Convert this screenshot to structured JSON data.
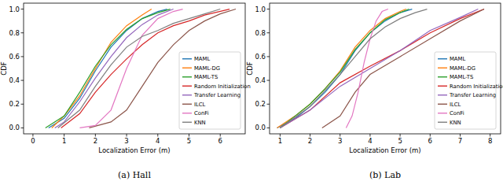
{
  "chart_data": [
    {
      "type": "line",
      "title": "(a) Hall",
      "x_label": "Localization Error (m)",
      "y_label": "CDF",
      "xlim": [
        -0.3,
        6.8
      ],
      "ylim": [
        -0.05,
        1.05
      ],
      "xticks": [
        0,
        1,
        2,
        3,
        4,
        5,
        6
      ],
      "yticks": [
        {
          "value": 0,
          "label": "0.0"
        },
        {
          "value": 0.2,
          "label": "0.2"
        },
        {
          "value": 0.4,
          "label": "0.4"
        },
        {
          "value": 0.6,
          "label": "0.6"
        },
        {
          "value": 0.8,
          "label": "0.8"
        },
        {
          "value": 1,
          "label": "1.0"
        }
      ],
      "legend": "lower right",
      "grid": false,
      "series": [
        {
          "name": "MAML",
          "color": "#1f77b4",
          "x": [
            0.5,
            1,
            1.5,
            2,
            2.5,
            3,
            3.5,
            4,
            4.3
          ],
          "values": [
            0,
            0.08,
            0.25,
            0.48,
            0.68,
            0.82,
            0.92,
            0.98,
            1
          ]
        },
        {
          "name": "MAML-DG",
          "color": "#ff7f0e",
          "x": [
            0.6,
            1,
            1.5,
            2,
            2.5,
            3,
            3.5,
            3.8
          ],
          "values": [
            0,
            0.1,
            0.27,
            0.5,
            0.72,
            0.86,
            0.95,
            1
          ]
        },
        {
          "name": "MAML-TS",
          "color": "#2ca02c",
          "x": [
            0.4,
            1,
            1.5,
            2,
            2.5,
            3,
            3.5,
            4,
            4.4
          ],
          "values": [
            0,
            0.1,
            0.3,
            0.52,
            0.7,
            0.83,
            0.92,
            0.97,
            1
          ]
        },
        {
          "name": "Random Initialization",
          "color": "#d62728",
          "x": [
            0.9,
            1.5,
            2,
            2.5,
            3,
            3.5,
            4,
            4.5,
            5,
            5.5,
            6.3
          ],
          "values": [
            0,
            0.12,
            0.3,
            0.45,
            0.58,
            0.7,
            0.8,
            0.86,
            0.9,
            0.95,
            1
          ]
        },
        {
          "name": "Transfer Learning",
          "color": "#9467bd",
          "x": [
            0.7,
            1,
            1.5,
            2,
            2.5,
            3,
            3.5,
            4,
            4.5
          ],
          "values": [
            0,
            0.05,
            0.22,
            0.42,
            0.6,
            0.76,
            0.87,
            0.95,
            1
          ]
        },
        {
          "name": "ILCL",
          "color": "#8c564b",
          "x": [
            1.8,
            2.5,
            3,
            3.5,
            4,
            4.5,
            5,
            5.5,
            6,
            6.5
          ],
          "values": [
            0,
            0.05,
            0.15,
            0.35,
            0.55,
            0.7,
            0.82,
            0.9,
            0.96,
            1
          ]
        },
        {
          "name": "ConFi",
          "color": "#e377c2",
          "x": [
            1.5,
            2,
            2.5,
            3,
            3.5,
            4,
            4.5,
            4.8
          ],
          "values": [
            0,
            0.02,
            0.15,
            0.5,
            0.78,
            0.92,
            0.98,
            1
          ]
        },
        {
          "name": "KNN",
          "color": "#7f7f7f",
          "x": [
            0.8,
            1.5,
            2,
            2.5,
            3,
            3.5,
            4,
            4.5,
            5,
            5.5,
            6
          ],
          "values": [
            0,
            0.15,
            0.35,
            0.53,
            0.68,
            0.77,
            0.82,
            0.88,
            0.92,
            0.96,
            1
          ]
        }
      ]
    },
    {
      "type": "line",
      "title": "(b) Lab",
      "x_label": "Localization Error (m)",
      "y_label": "CDF",
      "xlim": [
        0.65,
        8.35
      ],
      "ylim": [
        -0.05,
        1.05
      ],
      "xticks": [
        1,
        2,
        3,
        4,
        5,
        6,
        7,
        8
      ],
      "yticks": [
        {
          "value": 0,
          "label": "0.0"
        },
        {
          "value": 0.2,
          "label": "0.2"
        },
        {
          "value": 0.4,
          "label": "0.4"
        },
        {
          "value": 0.6,
          "label": "0.6"
        },
        {
          "value": 0.8,
          "label": "0.8"
        },
        {
          "value": 1,
          "label": "1.0"
        }
      ],
      "legend": "lower right",
      "grid": false,
      "series": [
        {
          "name": "MAML",
          "color": "#1f77b4",
          "x": [
            0.9,
            1.5,
            2,
            2.5,
            3,
            3.5,
            4,
            4.5,
            5,
            5.4
          ],
          "values": [
            0,
            0.08,
            0.18,
            0.3,
            0.45,
            0.65,
            0.8,
            0.9,
            0.97,
            1
          ]
        },
        {
          "name": "MAML-DG",
          "color": "#ff7f0e",
          "x": [
            0.9,
            1.5,
            2,
            2.5,
            3,
            3.5,
            4,
            4.5,
            5,
            5.2
          ],
          "values": [
            0,
            0.1,
            0.2,
            0.33,
            0.48,
            0.68,
            0.82,
            0.92,
            0.98,
            1
          ]
        },
        {
          "name": "MAML-TS",
          "color": "#2ca02c",
          "x": [
            1,
            1.5,
            2,
            2.5,
            3,
            3.5,
            4,
            4.5,
            5,
            5.3
          ],
          "values": [
            0,
            0.1,
            0.2,
            0.33,
            0.47,
            0.66,
            0.8,
            0.91,
            0.97,
            1
          ]
        },
        {
          "name": "Random Initialization",
          "color": "#d62728",
          "x": [
            1,
            2,
            3,
            4,
            5,
            6,
            7,
            7.8
          ],
          "values": [
            0,
            0.15,
            0.38,
            0.52,
            0.65,
            0.8,
            0.92,
            1
          ]
        },
        {
          "name": "Transfer Learning",
          "color": "#9467bd",
          "x": [
            1,
            2,
            3,
            4,
            5,
            6,
            7,
            7.6
          ],
          "values": [
            0,
            0.15,
            0.35,
            0.5,
            0.65,
            0.82,
            0.93,
            1
          ]
        },
        {
          "name": "ILCL",
          "color": "#8c564b",
          "x": [
            2.4,
            3,
            3.5,
            4,
            5,
            6,
            7,
            7.8
          ],
          "values": [
            0,
            0.1,
            0.3,
            0.45,
            0.6,
            0.75,
            0.9,
            1
          ]
        },
        {
          "name": "ConFi",
          "color": "#e377c2",
          "x": [
            3.2,
            3.4,
            3.6,
            3.8,
            4,
            4.2,
            4.4,
            4.6
          ],
          "values": [
            0,
            0.1,
            0.3,
            0.55,
            0.75,
            0.9,
            0.98,
            1
          ]
        },
        {
          "name": "KNN",
          "color": "#7f7f7f",
          "x": [
            1,
            2,
            3,
            3.5,
            4,
            4.5,
            5,
            5.5,
            5.9
          ],
          "values": [
            0,
            0.18,
            0.45,
            0.6,
            0.75,
            0.85,
            0.92,
            0.97,
            1
          ]
        }
      ]
    }
  ]
}
